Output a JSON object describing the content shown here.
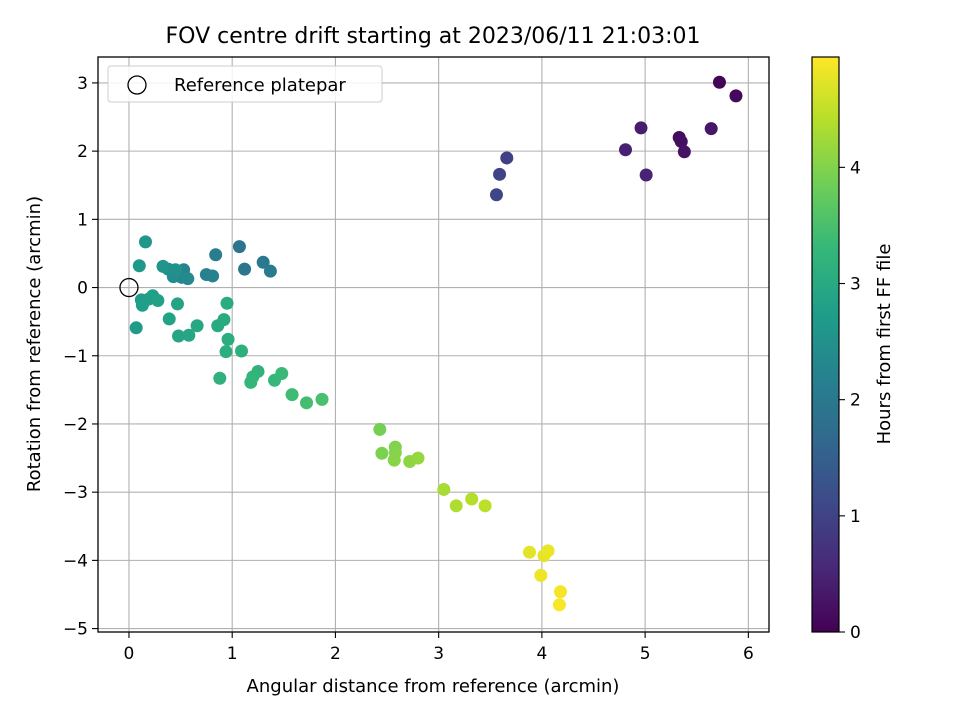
{
  "chart_data": {
    "type": "scatter",
    "title": "FOV centre drift starting at 2023/06/11 21:03:01",
    "xlabel": "Angular distance from reference (arcmin)",
    "ylabel": "Rotation from reference (arcmin)",
    "xlim": [
      -0.3,
      6.2
    ],
    "ylim": [
      -5.05,
      3.38
    ],
    "x_ticks": [
      0,
      1,
      2,
      3,
      4,
      5,
      6
    ],
    "y_ticks": [
      -5,
      -4,
      -3,
      -2,
      -1,
      0,
      1,
      2,
      3
    ],
    "grid": true,
    "legend": {
      "placement": "top-left",
      "entries": [
        "Reference platepar"
      ]
    },
    "reference_point": {
      "x": 0,
      "y": 0,
      "label": "Reference platepar"
    },
    "colorbar": {
      "label": "Hours from first FF file",
      "range": [
        0,
        4.95
      ],
      "ticks": [
        0,
        1,
        2,
        3,
        4
      ],
      "colormap": "viridis",
      "colormap_stops": [
        "#440154",
        "#482878",
        "#3e4989",
        "#31688e",
        "#26828e",
        "#1f9e89",
        "#35b779",
        "#6ece58",
        "#b5de2b",
        "#fde725"
      ]
    },
    "series": [
      {
        "x": [
          5.72,
          5.88,
          5.33,
          5.35,
          5.38,
          5.64,
          4.96,
          4.81,
          5.01,
          3.66,
          3.59,
          3.56,
          1.07,
          1.12,
          1.3,
          1.37,
          0.84,
          0.75,
          0.81,
          0.53,
          0.51,
          0.57,
          0.43,
          0.38,
          0.45,
          0.33,
          0.16,
          0.1,
          0.07,
          0.12,
          0.13,
          0.19,
          0.23,
          0.28,
          0.39,
          0.47,
          0.48,
          0.58,
          0.66,
          0.86,
          0.92,
          0.95,
          0.96,
          0.94,
          1.09,
          0.88,
          1.25,
          1.2,
          1.18,
          1.41,
          1.48,
          1.58,
          1.72,
          1.87,
          2.43,
          2.45,
          2.58,
          2.58,
          2.57,
          2.72,
          2.8,
          3.05,
          3.17,
          3.32,
          3.45,
          3.88,
          4.02,
          4.06,
          3.99,
          4.18,
          4.17
        ],
        "y": [
          3.01,
          2.81,
          2.2,
          2.14,
          1.99,
          2.33,
          2.34,
          2.02,
          1.65,
          1.9,
          1.66,
          1.36,
          0.6,
          0.27,
          0.37,
          0.24,
          0.48,
          0.19,
          0.17,
          0.26,
          0.15,
          0.13,
          0.16,
          0.27,
          0.26,
          0.31,
          0.67,
          0.32,
          -0.59,
          -0.18,
          -0.26,
          -0.17,
          -0.12,
          -0.19,
          -0.46,
          -0.24,
          -0.71,
          -0.7,
          -0.56,
          -0.56,
          -0.47,
          -0.23,
          -0.76,
          -0.94,
          -0.93,
          -1.33,
          -1.23,
          -1.31,
          -1.39,
          -1.36,
          -1.26,
          -1.57,
          -1.69,
          -1.64,
          -2.08,
          -2.43,
          -2.34,
          -2.42,
          -2.53,
          -2.55,
          -2.5,
          -2.96,
          -3.2,
          -3.1,
          -3.2,
          -3.88,
          -3.93,
          -3.86,
          -4.22,
          -4.46,
          -4.65
        ],
        "hours": [
          0.05,
          0.1,
          0.15,
          0.2,
          0.25,
          0.3,
          0.4,
          0.45,
          0.5,
          0.95,
          1.0,
          1.05,
          1.9,
          1.95,
          2.0,
          2.05,
          2.1,
          2.15,
          2.2,
          2.25,
          2.3,
          2.35,
          2.4,
          2.45,
          2.5,
          2.55,
          2.6,
          2.65,
          2.7,
          2.72,
          2.75,
          2.78,
          2.8,
          2.82,
          2.85,
          2.88,
          2.9,
          2.92,
          2.95,
          3.0,
          3.02,
          3.05,
          3.08,
          3.1,
          3.12,
          3.15,
          3.2,
          3.25,
          3.28,
          3.3,
          3.35,
          3.4,
          3.45,
          3.5,
          3.9,
          3.95,
          4.0,
          4.02,
          4.05,
          4.1,
          4.15,
          4.3,
          4.35,
          4.4,
          4.45,
          4.75,
          4.78,
          4.8,
          4.83,
          4.88,
          4.92
        ]
      }
    ]
  }
}
